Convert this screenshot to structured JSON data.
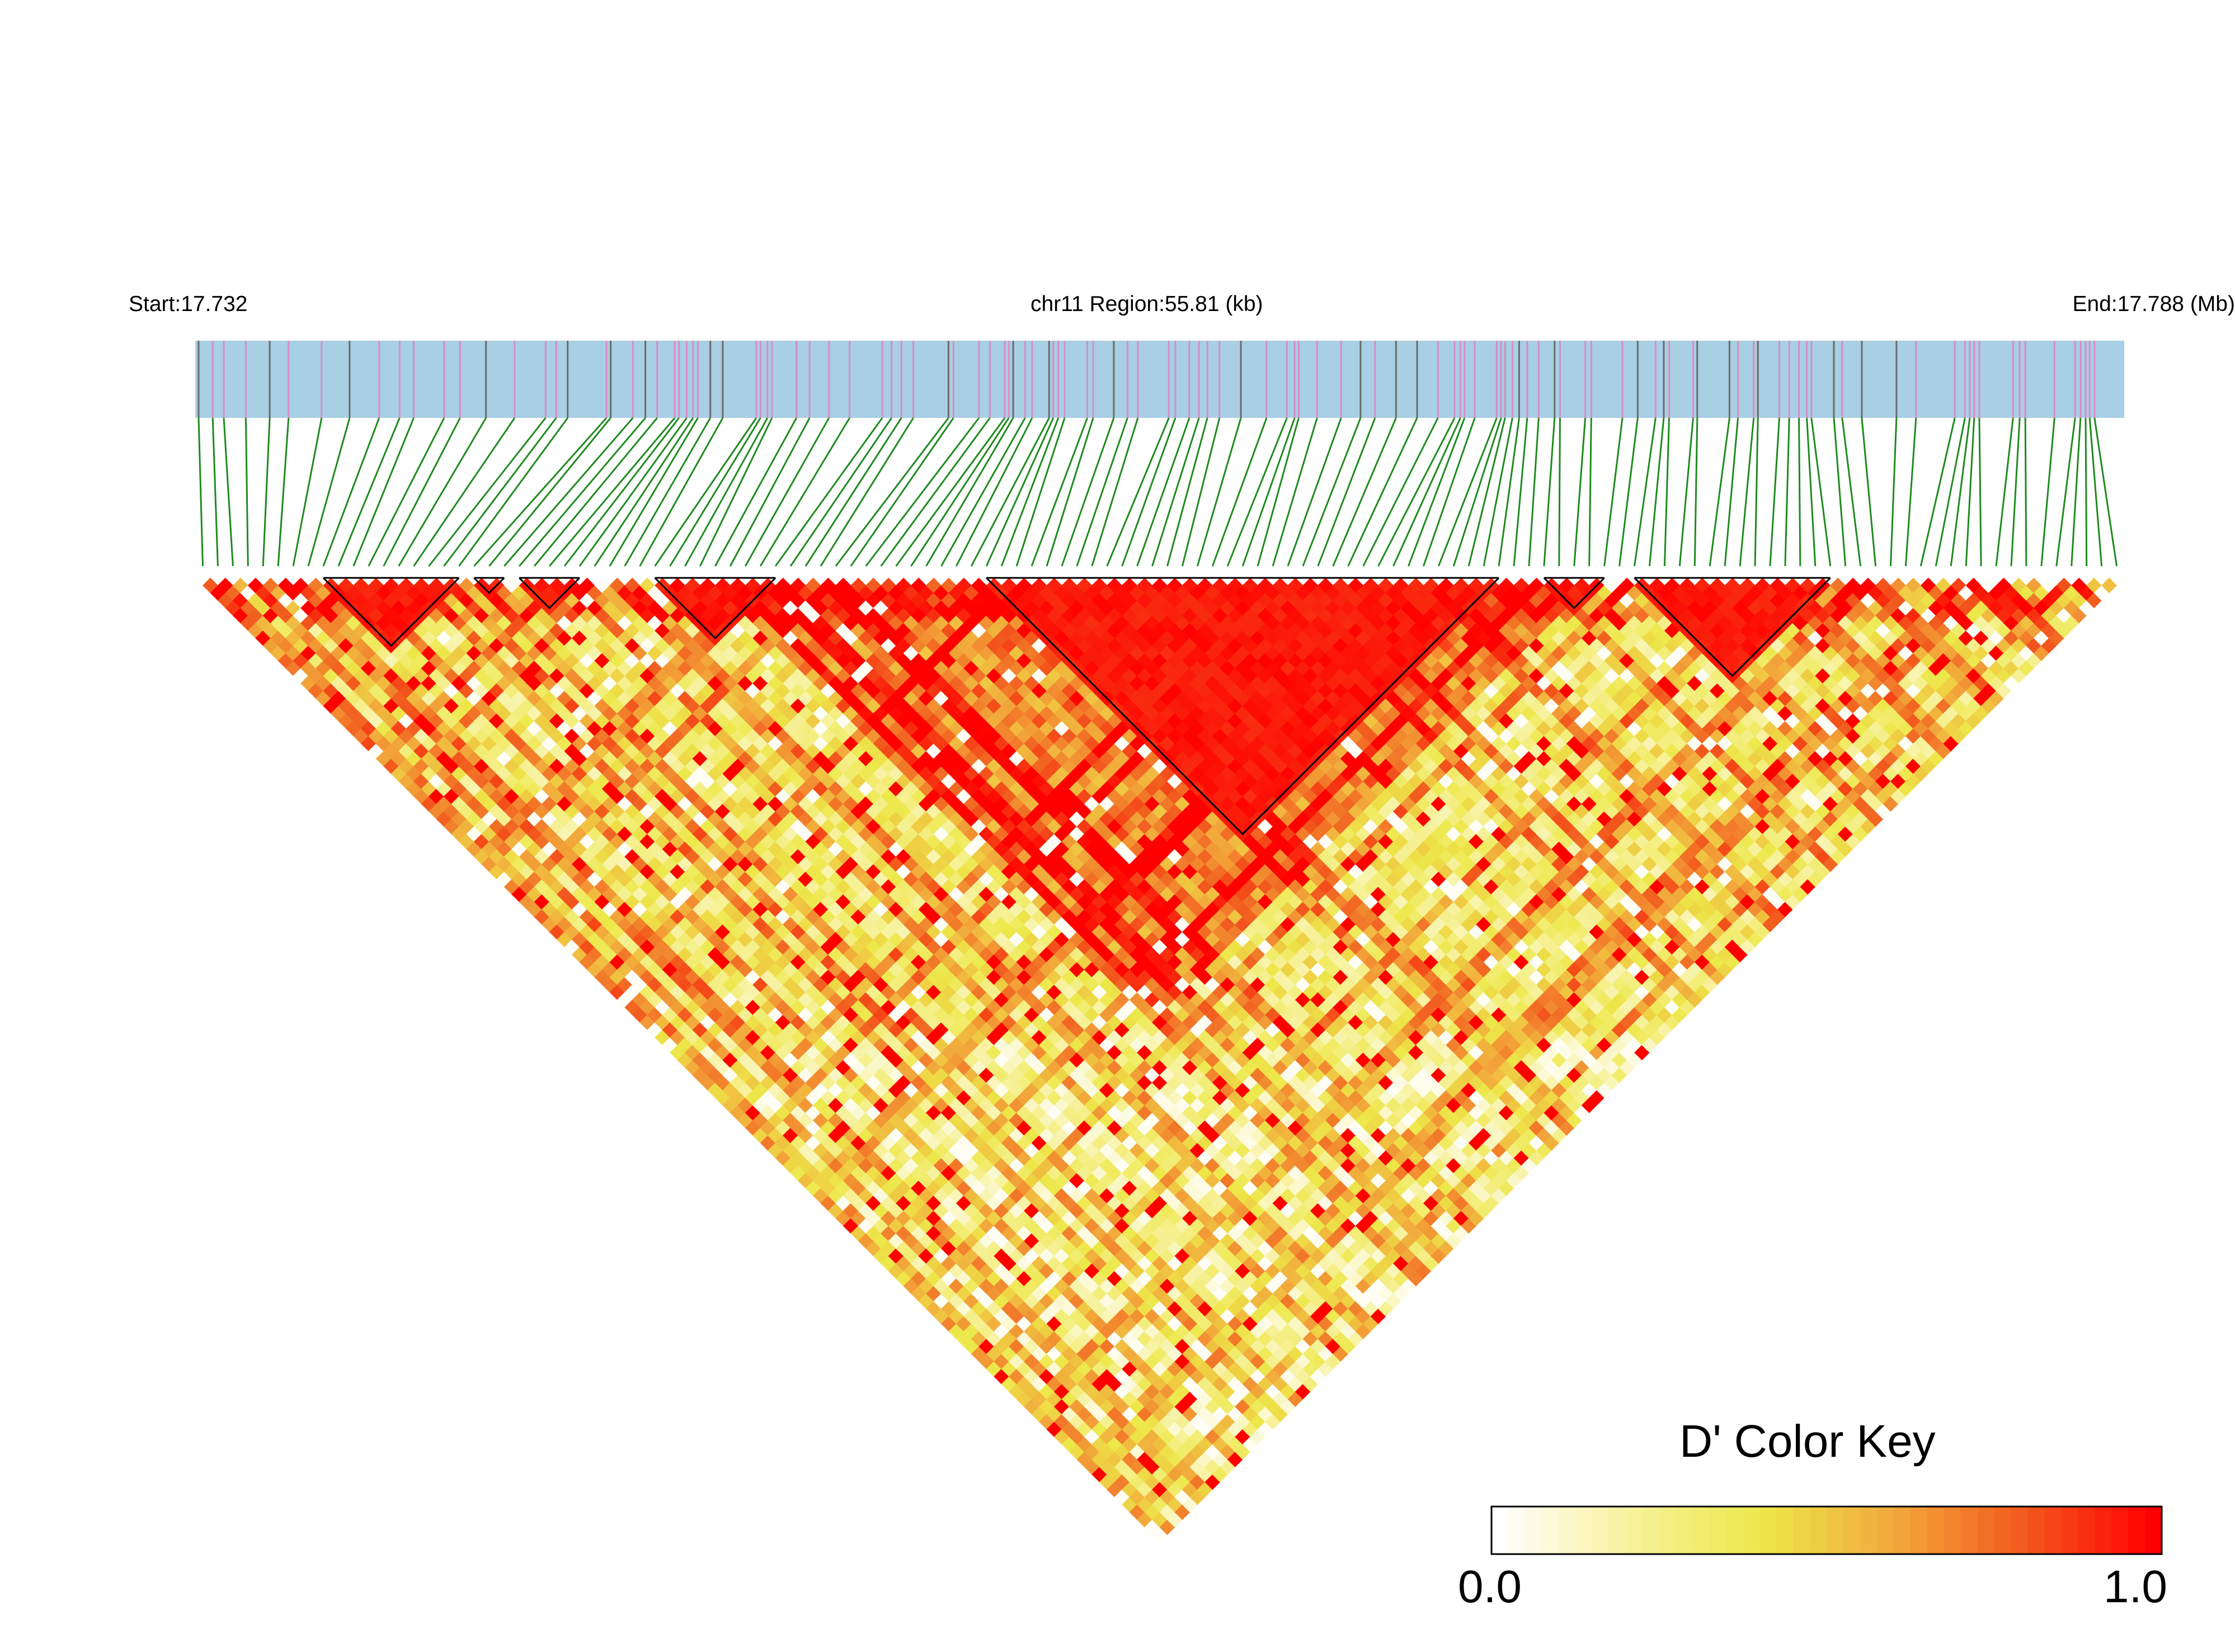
{
  "header": {
    "start_label": "Start:17.732",
    "region_label": "chr11 Region:55.81 (kb)",
    "end_label": "End:17.788 (Mb)"
  },
  "colors": {
    "track_fill": "#a8cfe3",
    "snp_tick_pink": "#d98cc4",
    "snp_tick_gray": "#6b6b6b",
    "connector_green": "#1f8a1f",
    "block_outline": "#000000",
    "scale": [
      "#ffffff",
      "#f7f19a",
      "#ede84a",
      "#f2a93b",
      "#f25a1e",
      "#ff0000"
    ]
  },
  "color_key": {
    "title": "D' Color Key",
    "min_label": "0.0",
    "max_label": "1.0"
  },
  "chart_data": {
    "type": "heatmap",
    "subtype": "LD triangle (D')",
    "chromosome": "chr11",
    "start_mb": 17.732,
    "end_mb": 17.788,
    "region_kb": 55.81,
    "n_snps": 128,
    "value_range": [
      0.0,
      1.0
    ],
    "snp_positions_mb_approx": "evenly spaced across 17.732–17.788",
    "ld_blocks": [
      {
        "first_snp": 8,
        "last_snp": 17
      },
      {
        "first_snp": 18,
        "last_snp": 20
      },
      {
        "first_snp": 21,
        "last_snp": 25
      },
      {
        "first_snp": 30,
        "last_snp": 38
      },
      {
        "first_snp": 52,
        "last_snp": 86
      },
      {
        "first_snp": 89,
        "last_snp": 93
      },
      {
        "first_snp": 95,
        "last_snp": 108
      }
    ],
    "ld_pattern_note": "high D' (≈1.0) concentrated along diagonal bands and inside blocks; background values mostly 0.1–0.5"
  }
}
